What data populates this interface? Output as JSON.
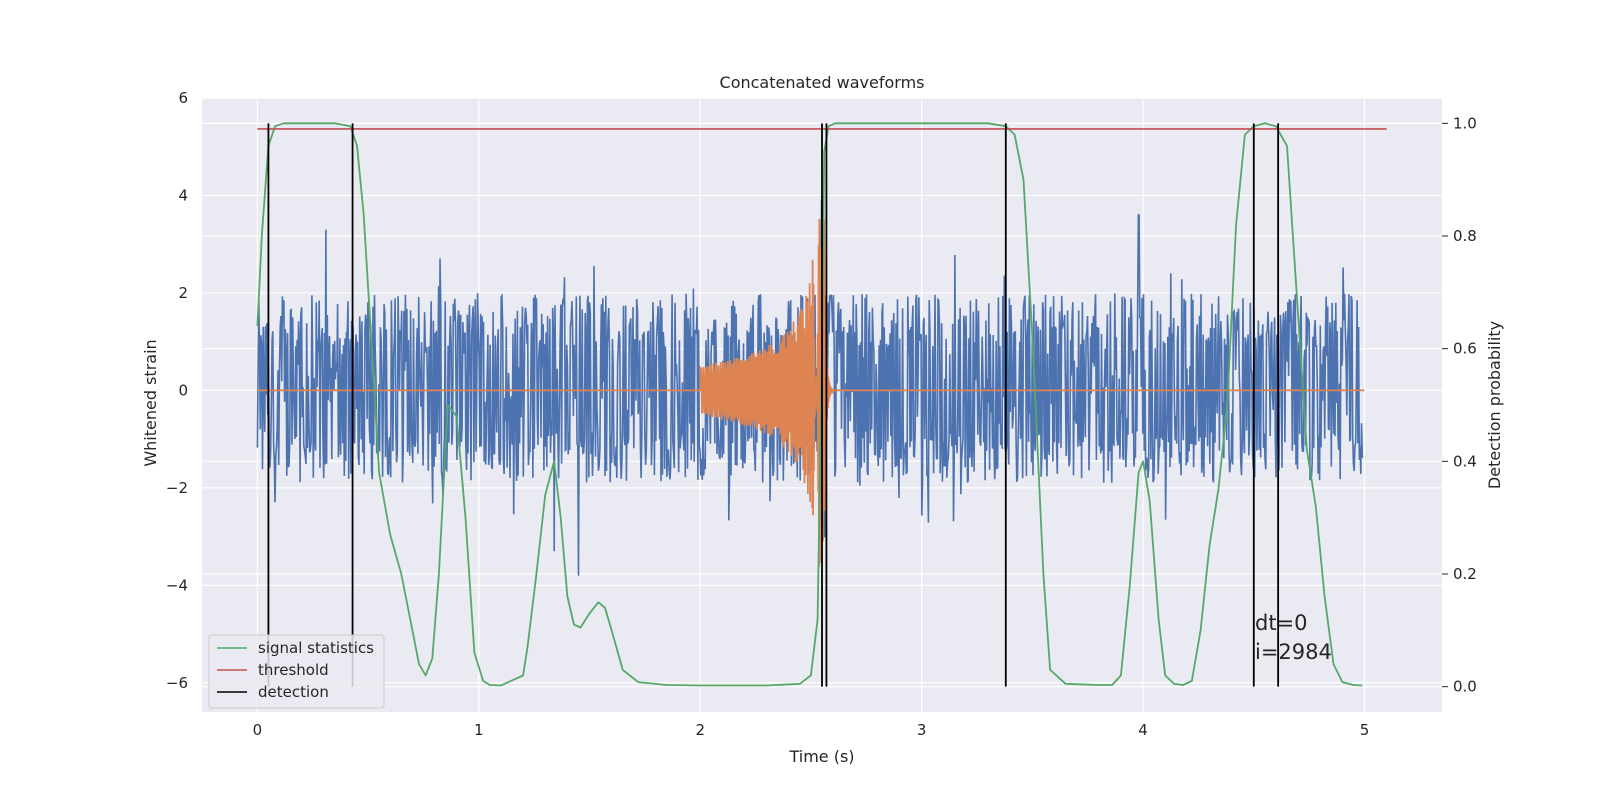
{
  "chart_data": {
    "type": "line",
    "title": "Concatenated waveforms",
    "xlabel": "Time (s)",
    "ylabel_left": "Whitened strain",
    "ylabel_right": "Detection probability",
    "xlim": [
      -0.25,
      5.35
    ],
    "ylim_left": [
      -6.6,
      6.0
    ],
    "ylim_right": [
      -0.045,
      1.045
    ],
    "x_ticks": [
      "0",
      "1",
      "2",
      "3",
      "4",
      "5"
    ],
    "y_left_ticks": [
      "6",
      "4",
      "2",
      "0",
      "−2",
      "−4",
      "−6"
    ],
    "y_right_ticks": [
      "1.0",
      "0.8",
      "0.6",
      "0.4",
      "0.2",
      "0.0"
    ],
    "grid": true,
    "legend_position": "lower-left",
    "colors": {
      "background": "#eaeaf2",
      "grid": "#ffffff",
      "strain": "#4c72b0",
      "template": "#dd8452",
      "signal_statistics": "#55a868",
      "threshold": "#c44e52",
      "detection": "#000000"
    },
    "strain_series": {
      "x_range": [
        0.0,
        4.99
      ],
      "typical_range": [
        -1.9,
        2.0
      ],
      "extremes": [
        [
          0.31,
          3.3
        ],
        [
          1.45,
          -3.8
        ],
        [
          2.55,
          3.9
        ],
        [
          2.56,
          -3.0
        ],
        [
          3.98,
          3.6
        ],
        [
          1.34,
          -3.3
        ]
      ]
    },
    "template_series": {
      "flat_value": 0,
      "chirp_start": 2.0,
      "merger": 2.56,
      "ringdown_end": 2.6,
      "peak_amplitude": 3.7
    },
    "signal_statistics": {
      "x": [
        0.0,
        0.02,
        0.05,
        0.08,
        0.12,
        0.2,
        0.35,
        0.42,
        0.45,
        0.48,
        0.52,
        0.55,
        0.6,
        0.65,
        0.7,
        0.73,
        0.76,
        0.79,
        0.82,
        0.86,
        0.9,
        0.94,
        0.98,
        1.02,
        1.05,
        1.1,
        1.2,
        1.22,
        1.26,
        1.3,
        1.34,
        1.37,
        1.4,
        1.43,
        1.46,
        1.5,
        1.54,
        1.57,
        1.6,
        1.65,
        1.72,
        1.85,
        2.0,
        2.3,
        2.45,
        2.5,
        2.53,
        2.55,
        2.56,
        2.58,
        2.61,
        2.7,
        3.0,
        3.3,
        3.38,
        3.42,
        3.46,
        3.5,
        3.55,
        3.58,
        3.65,
        3.8,
        3.86,
        3.9,
        3.94,
        3.98,
        4.0,
        4.03,
        4.07,
        4.1,
        4.14,
        4.18,
        4.22,
        4.26,
        4.3,
        4.34,
        4.38,
        4.42,
        4.46,
        4.5,
        4.55,
        4.6,
        4.65,
        4.7,
        4.74,
        4.78,
        4.82,
        4.86,
        4.9,
        4.95,
        4.99
      ],
      "y": [
        0.64,
        0.8,
        0.96,
        0.995,
        1.0,
        1.0,
        1.0,
        0.995,
        0.96,
        0.84,
        0.58,
        0.38,
        0.27,
        0.2,
        0.1,
        0.04,
        0.02,
        0.05,
        0.2,
        0.5,
        0.48,
        0.3,
        0.06,
        0.01,
        0.003,
        0.002,
        0.02,
        0.07,
        0.2,
        0.34,
        0.4,
        0.3,
        0.16,
        0.11,
        0.105,
        0.13,
        0.15,
        0.14,
        0.1,
        0.03,
        0.008,
        0.003,
        0.002,
        0.002,
        0.005,
        0.02,
        0.12,
        0.6,
        0.95,
        0.995,
        1.0,
        1.0,
        1.0,
        1.0,
        0.995,
        0.98,
        0.9,
        0.62,
        0.2,
        0.03,
        0.005,
        0.003,
        0.003,
        0.02,
        0.18,
        0.38,
        0.4,
        0.33,
        0.12,
        0.02,
        0.005,
        0.003,
        0.01,
        0.1,
        0.25,
        0.35,
        0.5,
        0.82,
        0.98,
        0.995,
        1.0,
        0.995,
        0.96,
        0.66,
        0.42,
        0.32,
        0.16,
        0.04,
        0.008,
        0.003,
        0.002
      ]
    },
    "threshold": {
      "value": 0.99,
      "x_range": [
        0.0,
        5.1
      ]
    },
    "detections": [
      0.05,
      0.43,
      2.55,
      2.57,
      3.38,
      4.5,
      4.61
    ],
    "legend": [
      "signal statistics",
      "threshold",
      "detection"
    ],
    "annotation": {
      "line1": "dt=0",
      "line2": "i=2984"
    }
  }
}
